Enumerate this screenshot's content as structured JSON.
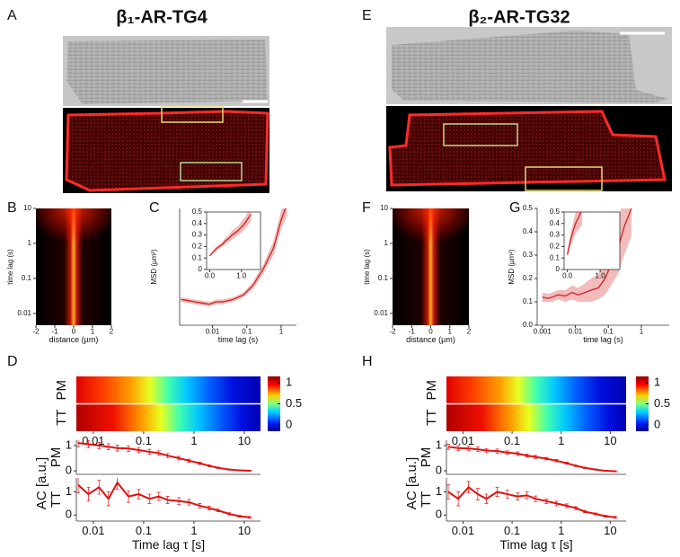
{
  "figure": {
    "panel_labels": [
      "A",
      "B",
      "C",
      "D",
      "E",
      "F",
      "G",
      "H"
    ],
    "titles": [
      "β₁-AR-TG4",
      "β₂-AR-TG32"
    ]
  },
  "chart_data": [
    {
      "type": "density",
      "xlim": [
        -2,
        2
      ],
      "xticks": [
        -2,
        -1,
        0,
        1,
        2
      ],
      "ylim": [
        0.0046,
        10
      ],
      "yscale": "log",
      "yticks": [
        0.01,
        0.1,
        1,
        10
      ],
      "xlabel": "distance (µm)",
      "ylabel": "time lag (s)"
    },
    {
      "type": "line",
      "xscale": "log",
      "xlim": [
        0.0011,
        2.8
      ],
      "xticks": [
        0.01,
        0.1,
        1
      ],
      "ylim": [
        0,
        0.5
      ],
      "xlabel": "time lag (s)",
      "ylabel": "MSD (µm²)",
      "color": "#d42020",
      "x": [
        0.0012,
        0.002,
        0.003,
        0.005,
        0.008,
        0.013,
        0.02,
        0.04,
        0.08,
        0.15,
        0.3,
        0.6,
        1.0,
        1.5
      ],
      "values": [
        0.11,
        0.105,
        0.1,
        0.095,
        0.09,
        0.1,
        0.1,
        0.11,
        0.13,
        0.17,
        0.24,
        0.33,
        0.45,
        0.52
      ],
      "lower": [
        0.1,
        0.095,
        0.09,
        0.085,
        0.08,
        0.09,
        0.09,
        0.1,
        0.12,
        0.155,
        0.22,
        0.3,
        0.41,
        0.47
      ],
      "upper": [
        0.12,
        0.115,
        0.11,
        0.105,
        0.1,
        0.11,
        0.11,
        0.12,
        0.14,
        0.185,
        0.26,
        0.36,
        0.49,
        0.57
      ]
    },
    {
      "type": "line",
      "xlim": [
        -0.1,
        1.6
      ],
      "xticks": [
        {
          "value": 0,
          "label": "0.0"
        },
        {
          "value": 1,
          "label": "1.0"
        }
      ],
      "ylim": [
        0,
        0.5
      ],
      "yticks": [
        0,
        0.1,
        0.2,
        0.3,
        0.4,
        0.5
      ],
      "color": "#d42020",
      "x": [
        0,
        0.1,
        0.2,
        0.3,
        0.4,
        0.5,
        0.6,
        0.7,
        0.8,
        0.9,
        1.0,
        1.1,
        1.2,
        1.3
      ],
      "values": [
        0.12,
        0.15,
        0.18,
        0.2,
        0.22,
        0.25,
        0.27,
        0.3,
        0.32,
        0.34,
        0.37,
        0.4,
        0.44,
        0.48
      ],
      "lower": [
        0.11,
        0.14,
        0.16,
        0.18,
        0.2,
        0.22,
        0.24,
        0.26,
        0.28,
        0.3,
        0.32,
        0.35,
        0.38,
        0.42
      ],
      "upper": [
        0.13,
        0.16,
        0.2,
        0.22,
        0.24,
        0.28,
        0.3,
        0.34,
        0.36,
        0.38,
        0.42,
        0.45,
        0.5,
        0.54
      ]
    },
    {
      "type": "heatmap",
      "rows": [
        "PM",
        "TT"
      ],
      "xscale": "log",
      "xlim": [
        0.0046,
        21
      ],
      "xticks": [
        0.01,
        0.1,
        1,
        10
      ],
      "clim": [
        -0.15,
        1.15
      ],
      "cticks": [
        0,
        0.5,
        1
      ]
    },
    {
      "type": "line",
      "xscale": "log",
      "xlim": [
        0.0046,
        21
      ],
      "ylim": [
        -0.14,
        1.21
      ],
      "yticks": [
        0,
        1
      ],
      "ylabel": "PM",
      "group_label": "AC [a.u.]",
      "color": "#e01010",
      "x": [
        0.005,
        0.008,
        0.013,
        0.02,
        0.03,
        0.05,
        0.08,
        0.13,
        0.2,
        0.3,
        0.5,
        0.8,
        1.3,
        2,
        3,
        5,
        8,
        13
      ],
      "values": [
        1.1,
        1.05,
        1.0,
        0.95,
        0.9,
        0.88,
        0.82,
        0.75,
        0.7,
        0.6,
        0.5,
        0.4,
        0.3,
        0.2,
        0.12,
        0.05,
        0.02,
        0
      ],
      "errors": [
        0.15,
        0.14,
        0.13,
        0.12,
        0.12,
        0.11,
        0.1,
        0.1,
        0.09,
        0.08,
        0.07,
        0.06,
        0.05,
        0.04,
        0.03,
        0.02,
        0.02,
        0.02
      ]
    },
    {
      "type": "line",
      "xscale": "log",
      "xlim": [
        0.0046,
        21
      ],
      "xticks": [
        0.01,
        0.1,
        1,
        10
      ],
      "ylim": [
        -0.26,
        1.6
      ],
      "yticks": [
        0,
        1
      ],
      "ylabel": "TT",
      "xlabel": "Time lag τ [s]",
      "color": "#e01010",
      "x": [
        0.005,
        0.008,
        0.013,
        0.02,
        0.03,
        0.05,
        0.08,
        0.13,
        0.2,
        0.3,
        0.5,
        0.8,
        1.3,
        2,
        3,
        5,
        8,
        13
      ],
      "values": [
        1.3,
        0.9,
        1.2,
        0.7,
        1.4,
        0.8,
        0.9,
        0.7,
        0.8,
        0.65,
        0.6,
        0.55,
        0.4,
        0.3,
        0.2,
        0.05,
        -0.05,
        -0.1
      ],
      "errors": [
        0.35,
        0.3,
        0.3,
        0.3,
        0.3,
        0.25,
        0.2,
        0.2,
        0.18,
        0.15,
        0.15,
        0.12,
        0.1,
        0.08,
        0.06,
        0.05,
        0.04,
        0.04
      ]
    },
    {
      "type": "density",
      "xlim": [
        -2,
        2
      ],
      "xticks": [
        -2,
        -1,
        0,
        1,
        2
      ],
      "ylim": [
        0.0046,
        10
      ],
      "yscale": "log",
      "yticks": [
        0.01,
        0.1,
        1,
        10
      ],
      "xlabel": "distance (µm)",
      "ylabel": "time lag (s)"
    },
    {
      "type": "line",
      "xscale": "log",
      "xlim": [
        0.0007,
        7
      ],
      "xticks": [
        0.001,
        0.01,
        0.1,
        1
      ],
      "ylim": [
        0,
        0.5
      ],
      "yticks": [
        {
          "value": 0,
          "label": "0.0"
        },
        0.1,
        0.2,
        0.3,
        0.4,
        0.5
      ],
      "xlabel": "time lag (s)",
      "ylabel": "MSD (µm²)",
      "color": "#d42020",
      "x": [
        0.001,
        0.0015,
        0.002,
        0.003,
        0.005,
        0.008,
        0.012,
        0.02,
        0.03,
        0.05,
        0.08,
        0.12,
        0.2,
        0.3,
        0.5
      ],
      "values": [
        0.12,
        0.115,
        0.12,
        0.13,
        0.125,
        0.14,
        0.13,
        0.14,
        0.15,
        0.16,
        0.2,
        0.26,
        0.33,
        0.42,
        0.5
      ],
      "lower": [
        0.1,
        0.1,
        0.1,
        0.11,
        0.1,
        0.11,
        0.1,
        0.1,
        0.1,
        0.11,
        0.13,
        0.17,
        0.22,
        0.3,
        0.38
      ],
      "upper": [
        0.14,
        0.135,
        0.14,
        0.15,
        0.15,
        0.17,
        0.16,
        0.18,
        0.2,
        0.22,
        0.28,
        0.36,
        0.45,
        0.56,
        0.65
      ]
    },
    {
      "type": "line",
      "xlim": [
        -0.1,
        1.6
      ],
      "xticks": [
        {
          "value": 0,
          "label": "0.0"
        },
        {
          "value": 1,
          "label": "1.0"
        }
      ],
      "ylim": [
        0,
        0.5
      ],
      "yticks": [
        0,
        0.1,
        0.2,
        0.3,
        0.4,
        0.5
      ],
      "color": "#d42020",
      "x": [
        0,
        0.05,
        0.1,
        0.15,
        0.2,
        0.25,
        0.3,
        0.35,
        0.4,
        0.45
      ],
      "values": [
        0.13,
        0.2,
        0.26,
        0.31,
        0.36,
        0.4,
        0.43,
        0.46,
        0.49,
        0.52
      ],
      "lower": [
        0.11,
        0.16,
        0.2,
        0.24,
        0.28,
        0.31,
        0.33,
        0.35,
        0.37,
        0.39
      ],
      "upper": [
        0.15,
        0.24,
        0.32,
        0.38,
        0.44,
        0.49,
        0.53,
        0.57,
        0.61,
        0.65
      ]
    },
    {
      "type": "heatmap",
      "rows": [
        "PM",
        "TT"
      ],
      "xscale": "log",
      "xlim": [
        0.0046,
        21
      ],
      "xticks": [
        0.01,
        0.1,
        1,
        10
      ],
      "clim": [
        -0.15,
        1.15
      ],
      "cticks": [
        0,
        0.5,
        1
      ]
    },
    {
      "type": "line",
      "xscale": "log",
      "xlim": [
        0.0046,
        21
      ],
      "ylim": [
        -0.14,
        1.21
      ],
      "yticks": [
        0,
        1
      ],
      "ylabel": "PM",
      "group_label": "AC [a.u.]",
      "color": "#e01010",
      "x": [
        0.005,
        0.008,
        0.013,
        0.02,
        0.03,
        0.05,
        0.08,
        0.13,
        0.2,
        0.3,
        0.5,
        0.8,
        1.3,
        2,
        3,
        5,
        8,
        13
      ],
      "values": [
        0.95,
        0.9,
        0.88,
        0.85,
        0.8,
        0.78,
        0.72,
        0.68,
        0.6,
        0.55,
        0.48,
        0.4,
        0.3,
        0.2,
        0.12,
        0.05,
        0.0,
        -0.02
      ],
      "errors": [
        0.1,
        0.1,
        0.09,
        0.09,
        0.08,
        0.08,
        0.07,
        0.07,
        0.06,
        0.06,
        0.05,
        0.05,
        0.04,
        0.03,
        0.03,
        0.02,
        0.02,
        0.02
      ]
    },
    {
      "type": "line",
      "xscale": "log",
      "xlim": [
        0.0046,
        21
      ],
      "xticks": [
        0.01,
        0.1,
        1,
        10
      ],
      "ylim": [
        -0.26,
        1.6
      ],
      "yticks": [
        0,
        1
      ],
      "ylabel": "TT",
      "xlabel": "Time lag τ [s]",
      "color": "#e01010",
      "x": [
        0.005,
        0.008,
        0.013,
        0.02,
        0.03,
        0.05,
        0.08,
        0.13,
        0.2,
        0.3,
        0.5,
        0.8,
        1.3,
        2,
        3,
        5,
        8,
        13
      ],
      "values": [
        1.0,
        0.7,
        1.2,
        0.9,
        0.7,
        1.0,
        0.9,
        0.8,
        0.85,
        0.7,
        0.6,
        0.5,
        0.4,
        0.3,
        0.15,
        0.05,
        -0.05,
        -0.1
      ],
      "errors": [
        0.3,
        0.3,
        0.25,
        0.25,
        0.2,
        0.2,
        0.18,
        0.15,
        0.15,
        0.12,
        0.1,
        0.1,
        0.08,
        0.06,
        0.05,
        0.04,
        0.04,
        0.04
      ]
    }
  ]
}
